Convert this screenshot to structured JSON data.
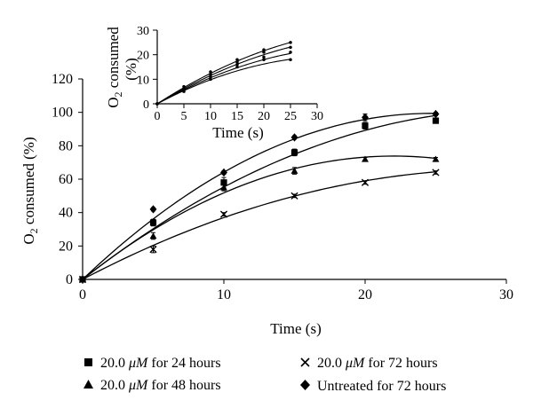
{
  "chart_data": [
    {
      "type": "scatter",
      "subtype": "scatter-with-polynomial-trendlines",
      "xlabel": "Time (s)",
      "ylabel_main": "O",
      "ylabel_sub": "2",
      "ylabel_rest": " consumed (%)",
      "xlim": [
        0,
        30
      ],
      "ylim": [
        0,
        120
      ],
      "xticks": [
        0,
        10,
        20,
        30
      ],
      "yticks": [
        0,
        20,
        40,
        60,
        80,
        100,
        120
      ],
      "grid": false,
      "legend_position": "bottom",
      "series": [
        {
          "name": "20.0 μM for 24 hours",
          "marker": "square",
          "x": [
            0,
            5,
            10,
            15,
            20,
            25
          ],
          "y": [
            0,
            34,
            58,
            76,
            92,
            95
          ],
          "err": [
            0,
            2,
            3,
            2,
            2,
            1
          ],
          "fit": [
            0,
            6.6,
            -0.107
          ]
        },
        {
          "name": "20.0 μM for 48 hours",
          "marker": "triangle",
          "x": [
            0,
            5,
            10,
            15,
            20,
            25
          ],
          "y": [
            0,
            26,
            55,
            65,
            72,
            72
          ],
          "err": [
            0,
            2,
            2,
            2,
            1,
            1
          ],
          "fit": [
            0,
            6.7,
            -0.152
          ]
        },
        {
          "name": "20.0 μM for 72 hours",
          "marker": "x",
          "x": [
            0,
            5,
            10,
            15,
            20,
            25
          ],
          "y": [
            0,
            18,
            39,
            50,
            58,
            64
          ],
          "err": [
            0,
            2,
            1,
            1,
            1,
            1
          ],
          "fit": [
            0,
            4.45,
            -0.075
          ]
        },
        {
          "name": "Untreated for 72 hours",
          "marker": "diamond",
          "x": [
            0,
            5,
            10,
            15,
            20,
            25
          ],
          "y": [
            0,
            42,
            64,
            85,
            97,
            99
          ],
          "err": [
            0,
            1,
            1,
            1,
            2,
            1
          ],
          "fit": [
            0,
            8.05,
            -0.163
          ]
        }
      ]
    },
    {
      "type": "scatter",
      "subtype": "inset-scatter-with-trendlines",
      "xlabel": "Time (s)",
      "ylabel_line1_main": "O",
      "ylabel_line1_sub": "2",
      "ylabel_line1_rest": " consumed",
      "ylabel_line2": "(%)",
      "xlim": [
        0,
        30
      ],
      "ylim": [
        0,
        30
      ],
      "xticks": [
        0,
        5,
        10,
        15,
        20,
        25,
        30
      ],
      "yticks": [
        0,
        10,
        20,
        30
      ],
      "grid": false,
      "series": [
        {
          "name": "series-1",
          "x": [
            0,
            5,
            10,
            15,
            20,
            25
          ],
          "y": [
            0,
            7,
            13,
            18,
            22,
            25
          ],
          "fit": [
            0,
            1.4,
            -0.016
          ]
        },
        {
          "name": "series-2",
          "x": [
            0,
            5,
            10,
            15,
            20,
            25
          ],
          "y": [
            0,
            6,
            12,
            17,
            21,
            23
          ],
          "fit": [
            0,
            1.3,
            -0.015
          ]
        },
        {
          "name": "series-3",
          "x": [
            0,
            5,
            10,
            15,
            20,
            25
          ],
          "y": [
            0,
            6,
            11,
            16,
            19,
            21
          ],
          "fit": [
            0,
            1.22,
            -0.016
          ]
        },
        {
          "name": "series-4",
          "x": [
            0,
            5,
            10,
            15,
            20,
            25
          ],
          "y": [
            0,
            5,
            10,
            15,
            18,
            18
          ],
          "fit": [
            0,
            1.15,
            -0.017
          ]
        }
      ]
    }
  ],
  "legend": {
    "items": [
      {
        "marker": "square",
        "prefix": "20.0 ",
        "unit": "μM",
        "suffix": " for 24 hours"
      },
      {
        "marker": "x",
        "prefix": "20.0 ",
        "unit": "μM",
        "suffix": " for 72 hours"
      },
      {
        "marker": "triangle",
        "prefix": "20.0 ",
        "unit": "μM",
        "suffix": " for 48 hours"
      },
      {
        "marker": "diamond",
        "prefix": "Untreated for 72 hours",
        "unit": "",
        "suffix": ""
      }
    ]
  },
  "colors": {
    "ink": "#000000",
    "background": "#ffffff"
  }
}
